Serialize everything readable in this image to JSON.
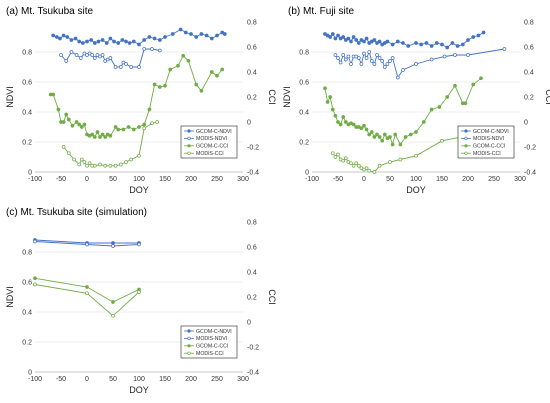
{
  "chart_data": [
    {
      "type": "line",
      "title": "(a) Mt. Tsukuba site",
      "xlabel": "DOY",
      "ylabel": "NDVI",
      "y2label": "CCI",
      "xlim": [
        -100,
        300
      ],
      "xticks": [
        -100,
        -50,
        0,
        50,
        100,
        150,
        200,
        250,
        300
      ],
      "ylim": [
        0,
        1.0
      ],
      "yticks": [
        0,
        0.2,
        0.4,
        0.6,
        0.8
      ],
      "y2lim": [
        -0.4,
        0.8
      ],
      "y2ticks": [
        -0.4,
        -0.2,
        0,
        0.2,
        0.4,
        0.6,
        0.8
      ],
      "legend_position": "bottom-right",
      "series": [
        {
          "name": "GCOM-C-NDVI",
          "color": "#4472C4",
          "marker": "filled",
          "axis": "left",
          "x": [
            -65,
            -58,
            -52,
            -45,
            -38,
            -30,
            -22,
            -15,
            -8,
            0,
            8,
            15,
            22,
            30,
            38,
            45,
            52,
            60,
            68,
            75,
            82,
            90,
            100,
            110,
            120,
            130,
            140,
            150,
            165,
            180,
            190,
            200,
            210,
            220,
            230,
            240,
            250,
            260,
            265
          ],
          "y": [
            0.91,
            0.9,
            0.89,
            0.91,
            0.9,
            0.88,
            0.89,
            0.87,
            0.86,
            0.87,
            0.88,
            0.86,
            0.87,
            0.88,
            0.86,
            0.89,
            0.87,
            0.86,
            0.88,
            0.87,
            0.86,
            0.87,
            0.85,
            0.88,
            0.9,
            0.89,
            0.88,
            0.9,
            0.92,
            0.95,
            0.93,
            0.92,
            0.9,
            0.92,
            0.91,
            0.89,
            0.91,
            0.93,
            0.92
          ]
        },
        {
          "name": "MODIS-NDVI",
          "color": "#4472C4",
          "marker": "open",
          "axis": "left",
          "x": [
            -50,
            -40,
            -30,
            -20,
            -12,
            -5,
            0,
            5,
            10,
            15,
            20,
            25,
            30,
            35,
            40,
            45,
            55,
            65,
            70,
            75,
            85,
            100,
            110,
            125,
            140
          ],
          "y": [
            0.78,
            0.74,
            0.8,
            0.78,
            0.76,
            0.79,
            0.78,
            0.79,
            0.78,
            0.76,
            0.78,
            0.77,
            0.78,
            0.74,
            0.75,
            0.76,
            0.7,
            0.7,
            0.73,
            0.72,
            0.7,
            0.7,
            0.82,
            0.82,
            0.81
          ]
        },
        {
          "name": "GCOM-C-CCI",
          "color": "#70AD47",
          "marker": "filled",
          "axis": "right",
          "x": [
            -70,
            -65,
            -55,
            -50,
            -45,
            -40,
            -35,
            -28,
            -20,
            -15,
            -10,
            -5,
            0,
            5,
            10,
            15,
            20,
            25,
            30,
            35,
            40,
            45,
            55,
            60,
            70,
            80,
            90,
            100,
            110,
            120,
            130,
            140,
            150,
            160,
            175,
            185,
            195,
            210,
            220,
            240,
            250,
            260
          ],
          "y": [
            0.22,
            0.22,
            0.1,
            0.0,
            0.0,
            0.06,
            0.02,
            -0.03,
            0.0,
            -0.02,
            -0.04,
            -0.02,
            -0.1,
            -0.11,
            -0.1,
            -0.12,
            -0.08,
            -0.12,
            -0.1,
            -0.12,
            -0.1,
            -0.11,
            -0.04,
            -0.06,
            -0.06,
            -0.04,
            -0.06,
            -0.04,
            -0.02,
            0.1,
            0.3,
            0.28,
            0.29,
            0.42,
            0.45,
            0.53,
            0.49,
            0.3,
            0.25,
            0.4,
            0.37,
            0.42
          ]
        },
        {
          "name": "MODIS-CCI",
          "color": "#70AD47",
          "marker": "open",
          "axis": "right",
          "x": [
            -45,
            -35,
            -25,
            -15,
            -10,
            -5,
            0,
            5,
            10,
            15,
            25,
            35,
            45,
            55,
            65,
            75,
            85,
            100,
            110,
            125,
            135
          ],
          "y": [
            -0.2,
            -0.25,
            -0.3,
            -0.34,
            -0.3,
            -0.32,
            -0.35,
            -0.33,
            -0.35,
            -0.35,
            -0.34,
            -0.35,
            -0.35,
            -0.35,
            -0.34,
            -0.32,
            -0.3,
            -0.27,
            -0.05,
            -0.01,
            0.0
          ]
        }
      ]
    },
    {
      "type": "line",
      "title": "(b) Mt. Fuji site",
      "xlabel": "DOY",
      "ylabel": "NDVI",
      "y2label": "CCI",
      "xlim": [
        -100,
        300
      ],
      "xticks": [
        -100,
        -50,
        0,
        50,
        100,
        150,
        200,
        250,
        300
      ],
      "ylim": [
        0,
        1.0
      ],
      "yticks": [
        0,
        0.2,
        0.4,
        0.6,
        0.8
      ],
      "y2lim": [
        -0.4,
        0.8
      ],
      "y2ticks": [
        -0.4,
        -0.2,
        0,
        0.2,
        0.4,
        0.6,
        0.8
      ],
      "legend_position": "bottom-right",
      "series": [
        {
          "name": "GCOM-C-NDVI",
          "color": "#4472C4",
          "marker": "filled",
          "axis": "left",
          "x": [
            -75,
            -70,
            -65,
            -60,
            -55,
            -50,
            -45,
            -40,
            -35,
            -30,
            -25,
            -20,
            -15,
            -10,
            -5,
            0,
            5,
            10,
            15,
            20,
            25,
            30,
            35,
            40,
            45,
            55,
            65,
            75,
            85,
            100,
            110,
            120,
            130,
            140,
            150,
            160,
            170,
            180,
            190,
            200,
            210,
            220,
            230
          ],
          "y": [
            0.92,
            0.91,
            0.9,
            0.92,
            0.89,
            0.91,
            0.89,
            0.9,
            0.88,
            0.89,
            0.87,
            0.9,
            0.88,
            0.86,
            0.88,
            0.87,
            0.89,
            0.86,
            0.87,
            0.88,
            0.86,
            0.87,
            0.85,
            0.86,
            0.87,
            0.85,
            0.87,
            0.86,
            0.84,
            0.86,
            0.85,
            0.86,
            0.84,
            0.86,
            0.85,
            0.83,
            0.86,
            0.84,
            0.85,
            0.88,
            0.9,
            0.91,
            0.93
          ]
        },
        {
          "name": "MODIS-NDVI",
          "color": "#4472C4",
          "marker": "open",
          "axis": "left",
          "x": [
            -55,
            -50,
            -45,
            -40,
            -35,
            -30,
            -25,
            -20,
            -15,
            -10,
            -5,
            0,
            5,
            10,
            15,
            20,
            25,
            30,
            35,
            40,
            45,
            50,
            55,
            65,
            75,
            100,
            130,
            155,
            175,
            200,
            270
          ],
          "y": [
            0.78,
            0.76,
            0.73,
            0.78,
            0.75,
            0.77,
            0.72,
            0.77,
            0.77,
            0.76,
            0.72,
            0.79,
            0.76,
            0.8,
            0.74,
            0.72,
            0.78,
            0.76,
            0.74,
            0.7,
            0.72,
            0.74,
            0.76,
            0.63,
            0.68,
            0.72,
            0.75,
            0.77,
            0.78,
            0.78,
            0.82
          ]
        },
        {
          "name": "GCOM-C-CCI",
          "color": "#70AD47",
          "marker": "filled",
          "axis": "right",
          "x": [
            -75,
            -70,
            -65,
            -60,
            -55,
            -50,
            -45,
            -40,
            -35,
            -30,
            -25,
            -20,
            -15,
            -10,
            -5,
            0,
            5,
            10,
            15,
            20,
            25,
            30,
            35,
            40,
            45,
            50,
            55,
            60,
            70,
            80,
            90,
            100,
            115,
            130,
            145,
            160,
            175,
            190,
            195,
            210,
            225
          ],
          "y": [
            0.27,
            0.16,
            0.2,
            0.1,
            0.05,
            0.0,
            -0.02,
            0.04,
            0.0,
            -0.02,
            -0.01,
            -0.02,
            -0.04,
            -0.04,
            -0.05,
            -0.03,
            -0.06,
            -0.1,
            -0.08,
            -0.12,
            -0.1,
            -0.12,
            -0.15,
            -0.1,
            -0.13,
            -0.12,
            -0.18,
            -0.1,
            -0.18,
            -0.12,
            -0.1,
            -0.08,
            0.0,
            0.1,
            0.12,
            0.2,
            0.29,
            0.15,
            0.15,
            0.3,
            0.35
          ]
        },
        {
          "name": "MODIS-CCI",
          "color": "#70AD47",
          "marker": "open",
          "axis": "right",
          "x": [
            -60,
            -55,
            -50,
            -45,
            -40,
            -35,
            -30,
            -25,
            -20,
            -15,
            -10,
            -5,
            0,
            5,
            10,
            20,
            30,
            50,
            70,
            100,
            150,
            270
          ],
          "y": [
            -0.25,
            -0.28,
            -0.26,
            -0.3,
            -0.31,
            -0.29,
            -0.32,
            -0.33,
            -0.35,
            -0.33,
            -0.35,
            -0.37,
            -0.38,
            -0.37,
            -0.39,
            -0.4,
            -0.35,
            -0.32,
            -0.3,
            -0.27,
            -0.15,
            -0.05
          ]
        }
      ]
    },
    {
      "type": "line",
      "title": "(c) Mt. Tsukuba site (simulation)",
      "xlabel": "DOY",
      "ylabel": "NDVI",
      "y2label": "CCI",
      "xlim": [
        -100,
        300
      ],
      "xticks": [
        -100,
        -50,
        0,
        50,
        100,
        150,
        200,
        250,
        300
      ],
      "ylim": [
        0,
        1.0
      ],
      "yticks": [
        0,
        0.2,
        0.4,
        0.6,
        0.8
      ],
      "y2lim": [
        -0.4,
        0.8
      ],
      "y2ticks": [
        -0.4,
        -0.2,
        0,
        0.2,
        0.4,
        0.6,
        0.8
      ],
      "legend_position": "bottom-right",
      "series": [
        {
          "name": "GCOM-C-NDVI",
          "color": "#4472C4",
          "marker": "filled",
          "axis": "left",
          "x": [
            -100,
            0,
            50,
            100
          ],
          "y": [
            0.88,
            0.86,
            0.86,
            0.86
          ]
        },
        {
          "name": "MODIS-NDVI",
          "color": "#4472C4",
          "marker": "open",
          "axis": "left",
          "x": [
            -100,
            0,
            50,
            100
          ],
          "y": [
            0.87,
            0.85,
            0.84,
            0.85
          ]
        },
        {
          "name": "GCOM-C-CCI",
          "color": "#70AD47",
          "marker": "filled",
          "axis": "right",
          "x": [
            -100,
            0,
            50,
            100
          ],
          "y": [
            0.35,
            0.28,
            0.16,
            0.26
          ]
        },
        {
          "name": "MODIS-CCI",
          "color": "#70AD47",
          "marker": "open",
          "axis": "right",
          "x": [
            -100,
            0,
            50,
            100
          ],
          "y": [
            0.3,
            0.23,
            0.05,
            0.24
          ]
        }
      ]
    }
  ]
}
